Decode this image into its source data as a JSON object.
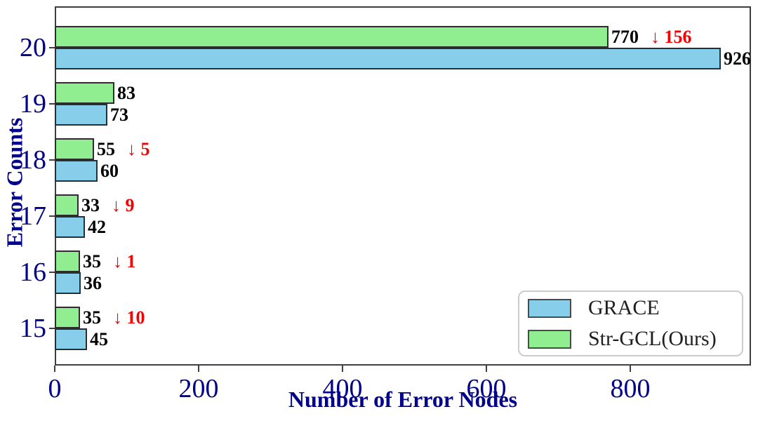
{
  "chart_data": {
    "type": "bar",
    "orientation": "horizontal",
    "title": "",
    "xlabel": "Number of Error Nodes",
    "ylabel": "Error Counts",
    "categories": [
      "20",
      "19",
      "18",
      "17",
      "16",
      "15"
    ],
    "series": [
      {
        "name": "GRACE",
        "color": "#87CEEB",
        "values": [
          926,
          73,
          60,
          42,
          36,
          45
        ]
      },
      {
        "name": "Str-GCL(Ours)",
        "color": "#90EE90",
        "values": [
          770,
          83,
          55,
          33,
          35,
          35
        ]
      }
    ],
    "bar_order_top_to_bottom": [
      "Str-GCL(Ours)",
      "GRACE"
    ],
    "deltas": {
      "20": "↓ 156",
      "18": "↓ 5",
      "17": "↓ 9",
      "16": "↓ 1",
      "15": "↓ 10"
    },
    "xticks": [
      "0",
      "200",
      "400",
      "600",
      "800"
    ],
    "xtick_values": [
      0,
      200,
      400,
      600,
      800
    ],
    "xlim": [
      0,
      968
    ],
    "grid": false,
    "legend": {
      "position": "lower-right",
      "entries": [
        {
          "label": "GRACE",
          "color": "#87CEEB"
        },
        {
          "label": "Str-GCL(Ours)",
          "color": "#90EE90"
        }
      ]
    }
  },
  "colors": {
    "tick_label": "#00008B",
    "axis_title": "#00008B",
    "bar_value": "#000000",
    "delta": "#F40000",
    "bar_edge": "#2d2d2d",
    "spine": "#3f3f3f",
    "legend_text": "#1f1f1f",
    "legend_border": "#cccccc",
    "background": "#FFFFFF"
  }
}
